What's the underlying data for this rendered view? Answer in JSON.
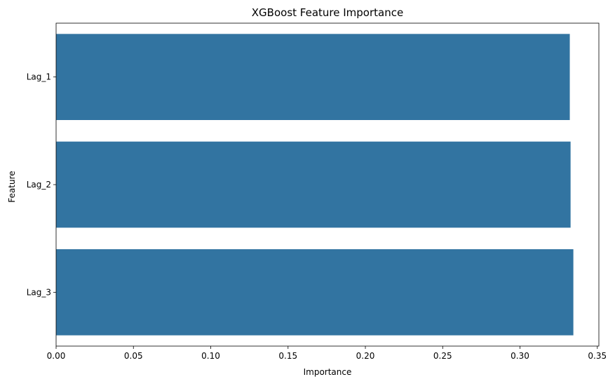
{
  "chart_data": {
    "type": "bar",
    "orientation": "horizontal",
    "title": "XGBoost Feature Importance",
    "xlabel": "Importance",
    "ylabel": "Feature",
    "categories": [
      "Lag_1",
      "Lag_2",
      "Lag_3"
    ],
    "values": [
      0.3322,
      0.3327,
      0.3345
    ],
    "xlim": [
      0.0,
      0.351
    ],
    "xticks": [
      0.0,
      0.05,
      0.1,
      0.15,
      0.2,
      0.25,
      0.3,
      0.35
    ],
    "xtick_labels": [
      "0.00",
      "0.05",
      "0.10",
      "0.15",
      "0.20",
      "0.25",
      "0.30",
      "0.35"
    ],
    "grid": false,
    "legend": "none",
    "bar_color": "#3274a1"
  }
}
